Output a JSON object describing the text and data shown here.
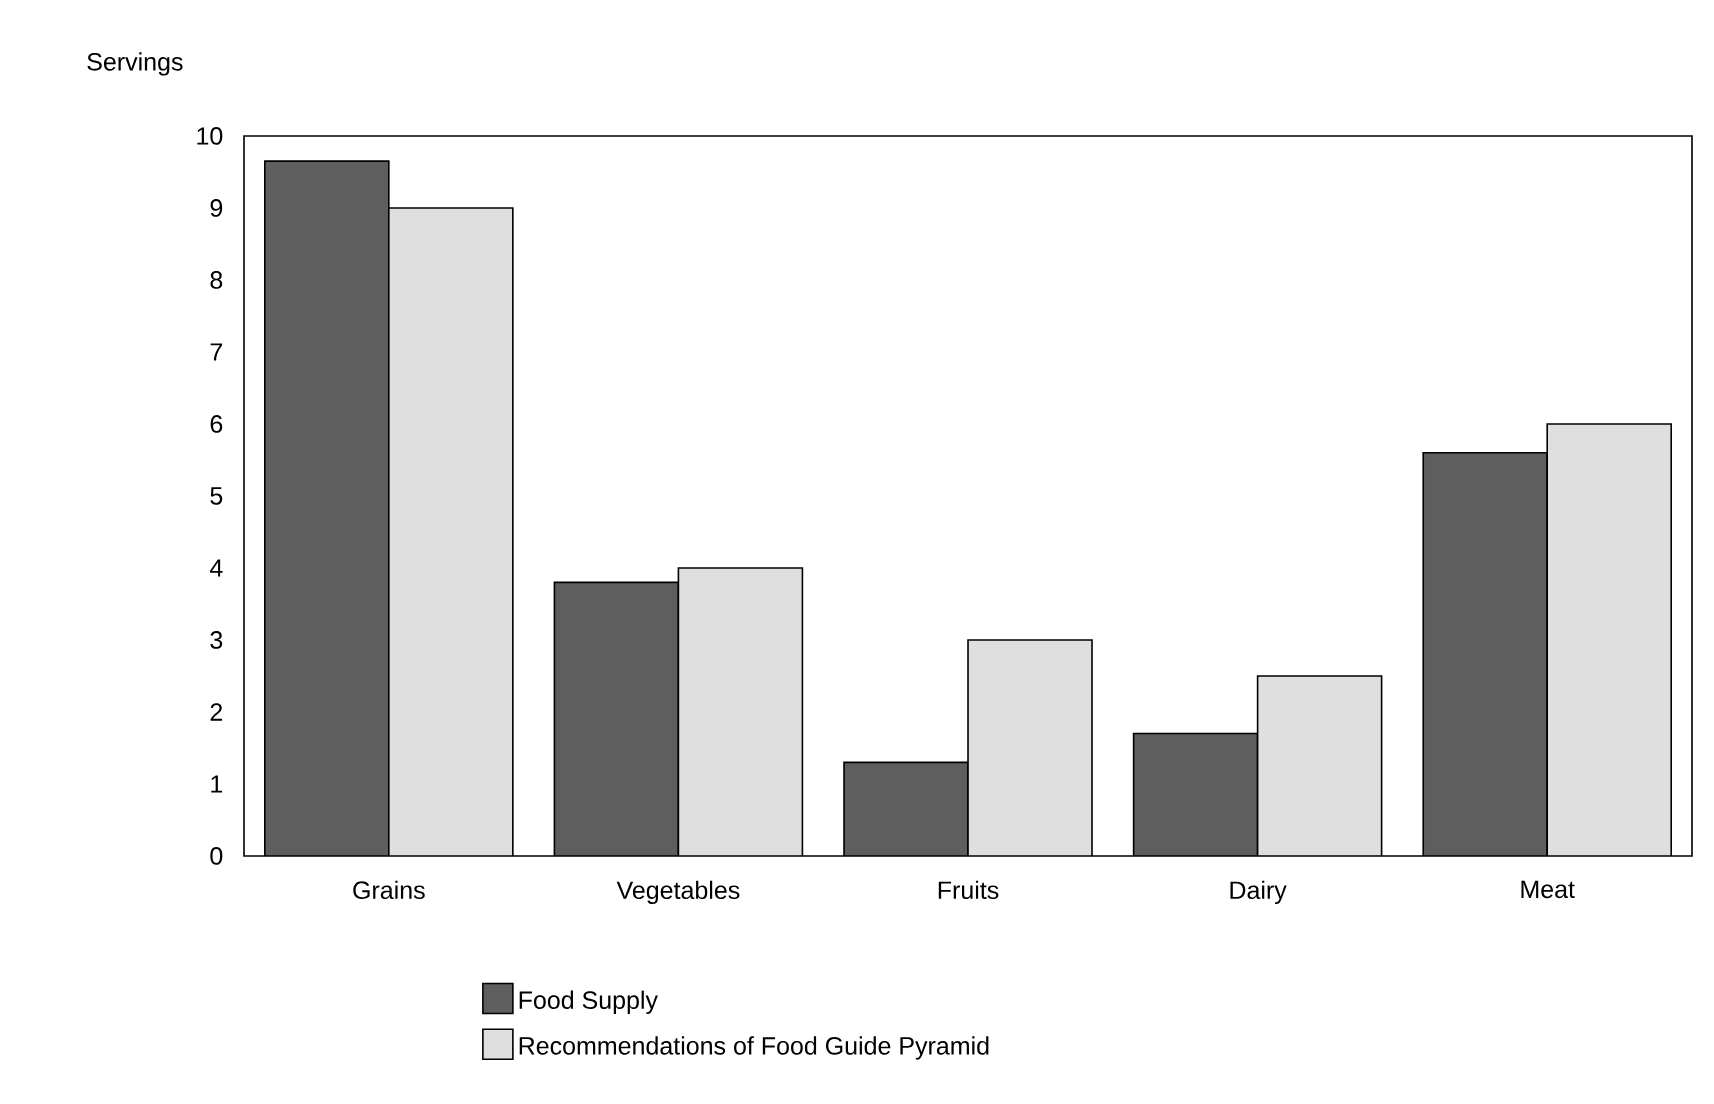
{
  "chart_data": {
    "type": "bar",
    "ylabel": "Servings",
    "categories": [
      "Grains",
      "Vegetables",
      "Fruits",
      "Dairy",
      "Meat"
    ],
    "series": [
      {
        "name": "Food Supply",
        "color": "#5e5e5e",
        "values": [
          9.65,
          3.8,
          1.3,
          1.7,
          5.6
        ]
      },
      {
        "name": "Recommendations of Food Guide Pyramid",
        "color": "#dfdfdf",
        "values": [
          9.0,
          4.0,
          3.0,
          2.5,
          6.0
        ]
      }
    ],
    "ylim": [
      0,
      10
    ],
    "yticks": [
      0,
      1,
      2,
      3,
      4,
      5,
      6,
      7,
      8,
      9,
      10
    ],
    "legend": "bottom"
  }
}
